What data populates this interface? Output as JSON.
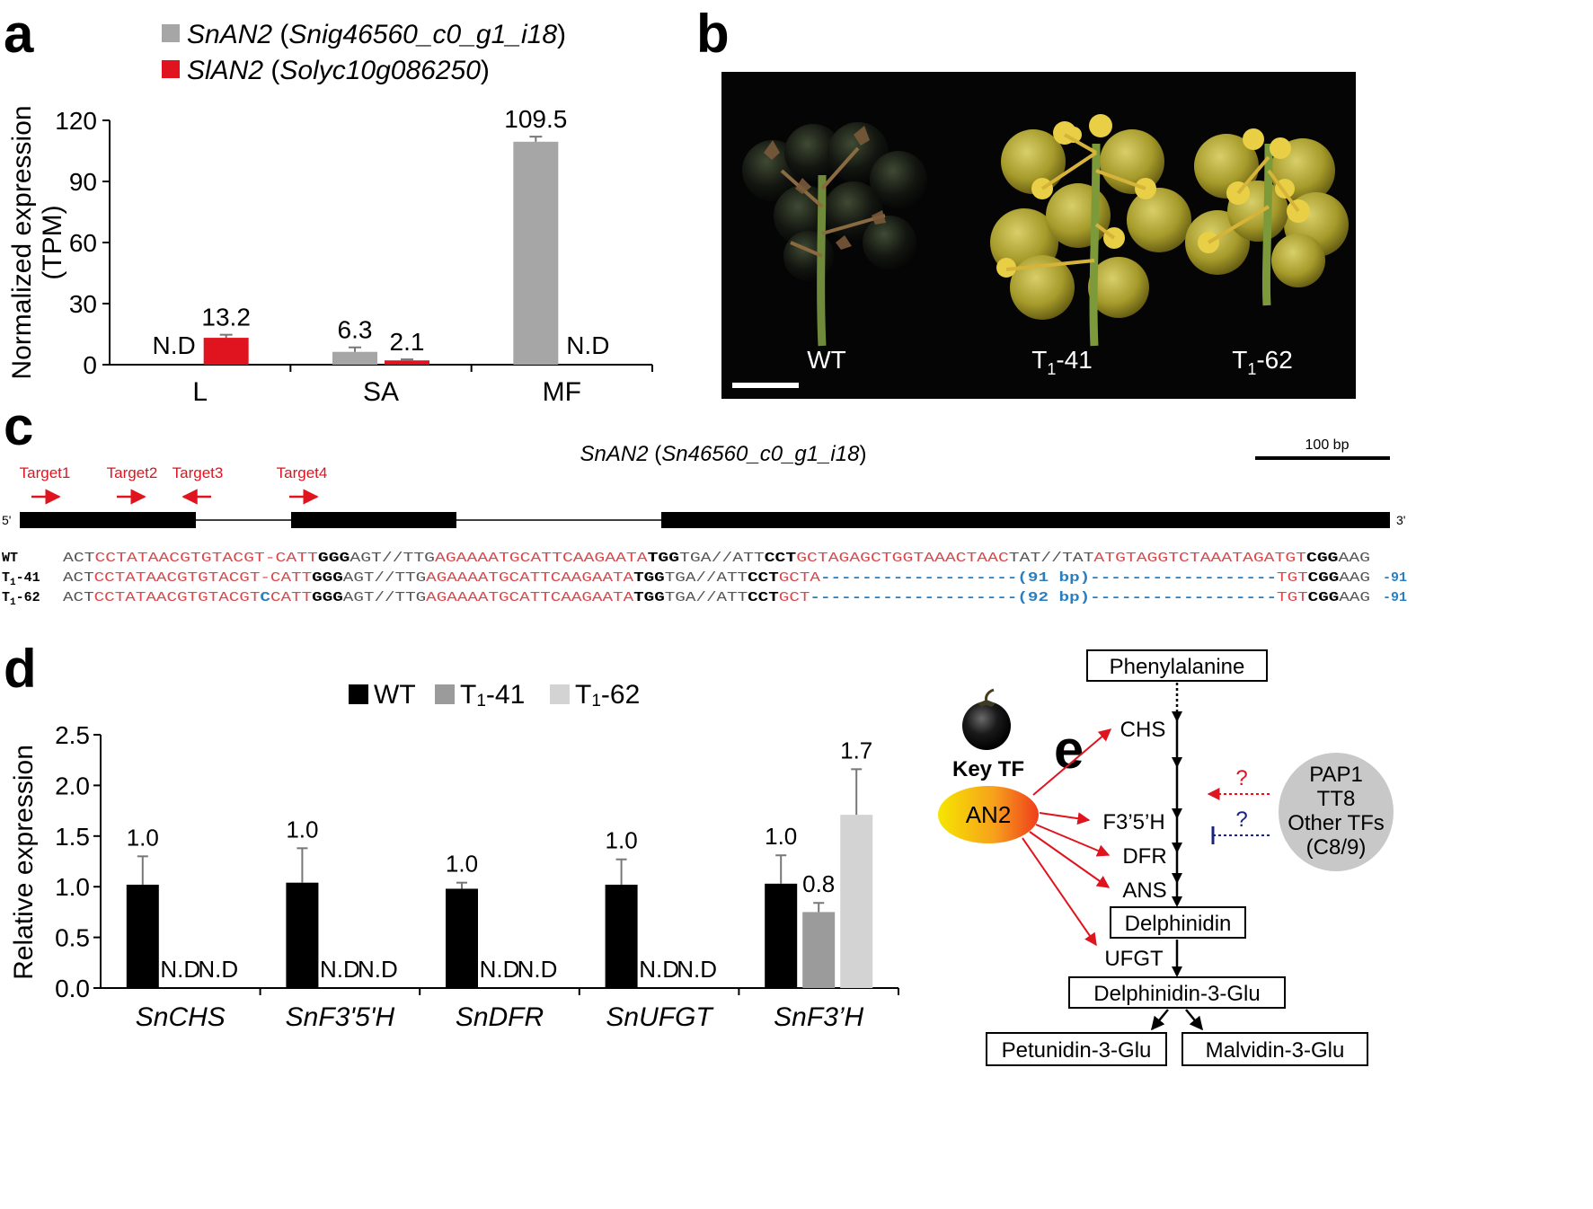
{
  "panels": {
    "a": "a",
    "b": "b",
    "c": "c",
    "d": "d",
    "e": "e"
  },
  "panel_a": {
    "legend": [
      {
        "gene": "SnAN2",
        "id": "Snig46560_c0_g1_i18",
        "color": "#a6a6a6"
      },
      {
        "gene": "SlAN2",
        "id": "Solyc10g086250",
        "color": "#e0141e"
      }
    ],
    "open_paren": " (",
    "close_paren": ")"
  },
  "panel_b": {
    "labels": [
      {
        "base": "WT",
        "sub": "",
        "rest": ""
      },
      {
        "base": "T",
        "sub": "1",
        "rest": "-41"
      },
      {
        "base": "T",
        "sub": "1",
        "rest": "-62"
      }
    ]
  },
  "panel_c": {
    "gene": "SnAN2",
    "id": "Sn46560_c0_g1_i18",
    "scale_label": "100 bp",
    "end5": "5'",
    "end3": "3'",
    "targets": [
      "Target1",
      "Target2",
      "Target3",
      "Target4"
    ],
    "rows": [
      {
        "label": "WT",
        "segments": [
          {
            "t": "ACT",
            "c": "g"
          },
          {
            "t": "CCTATAACGTGTACGT-CATT",
            "c": "r"
          },
          {
            "t": "GGG",
            "c": "b"
          },
          {
            "t": "AGT//TTG",
            "c": "g"
          },
          {
            "t": "AGAAAATGCATTCAAGAATA",
            "c": "r"
          },
          {
            "t": "TGG",
            "c": "b"
          },
          {
            "t": "TGA//ATT",
            "c": "g"
          },
          {
            "t": "CCT",
            "c": "b"
          },
          {
            "t": "GCTAGAGCTGGTAAACTAAC",
            "c": "r"
          },
          {
            "t": "TAT//TAT",
            "c": "g"
          },
          {
            "t": "ATGTAGGTCTAAATAGATGT",
            "c": "r"
          },
          {
            "t": "CGG",
            "c": "b"
          },
          {
            "t": "AAG",
            "c": "g"
          }
        ],
        "suffix": ""
      },
      {
        "label_base": "T",
        "label_sub": "1",
        "label_rest": "-41",
        "segments": [
          {
            "t": "ACT",
            "c": "g"
          },
          {
            "t": "CCTATAACGTGTACGT-CATT",
            "c": "r"
          },
          {
            "t": "GGG",
            "c": "b"
          },
          {
            "t": "AGT//TTG",
            "c": "g"
          },
          {
            "t": "AGAAAATGCATTCAAGAATA",
            "c": "r"
          },
          {
            "t": "TGG",
            "c": "b"
          },
          {
            "t": "TGA//ATT",
            "c": "g"
          },
          {
            "t": "CCT",
            "c": "b"
          },
          {
            "t": "GCTA",
            "c": "r"
          },
          {
            "t": "-------------------(91 bp)------------------",
            "c": "u"
          },
          {
            "t": "TGT",
            "c": "r"
          },
          {
            "t": "CGG",
            "c": "b"
          },
          {
            "t": "AAG",
            "c": "g"
          }
        ],
        "suffix": "-91"
      },
      {
        "label_base": "T",
        "label_sub": "1",
        "label_rest": "-62",
        "segments": [
          {
            "t": "ACT",
            "c": "g"
          },
          {
            "t": "CCTATAACGTGTACGT",
            "c": "r"
          },
          {
            "t": "C",
            "c": "u"
          },
          {
            "t": "CATT",
            "c": "r"
          },
          {
            "t": "GGG",
            "c": "b"
          },
          {
            "t": "AGT//TTG",
            "c": "g"
          },
          {
            "t": "AGAAAATGCATTCAAGAATA",
            "c": "r"
          },
          {
            "t": "TGG",
            "c": "b"
          },
          {
            "t": "TGA//ATT",
            "c": "g"
          },
          {
            "t": "CCT",
            "c": "b"
          },
          {
            "t": "GCT",
            "c": "r"
          },
          {
            "t": "--------------------(92 bp)------------------",
            "c": "u"
          },
          {
            "t": "TGT",
            "c": "r"
          },
          {
            "t": "CGG",
            "c": "b"
          },
          {
            "t": "AAG",
            "c": "g"
          }
        ],
        "suffix": "-91"
      }
    ]
  },
  "panel_e": {
    "key_tf": "Key TF",
    "an2": "AN2",
    "boxes": [
      "Phenylalanine",
      "Delphinidin",
      "Delphinidin-3-Glu",
      "Petunidin-3-Glu",
      "Malvidin-3-Glu"
    ],
    "enzymes": [
      "CHS",
      "F3’5’H",
      "DFR",
      "ANS",
      "UFGT"
    ],
    "others": [
      "PAP1",
      "TT8",
      "Other TFs",
      "(C8/9)"
    ],
    "question": "?"
  },
  "colors": {
    "bar_gray": "#a6a6a6",
    "bar_red": "#e0141e",
    "seq_red": "#d9484b",
    "seq_blue": "#2a7fc1",
    "seq_gray": "#555555"
  },
  "chart_data": [
    {
      "type": "bar",
      "panel": "a",
      "categories": [
        "L",
        "SA",
        "MF"
      ],
      "series": [
        {
          "name": "SnAN2 (Snig46560_c0_g1_i18)",
          "values": [
            null,
            6.3,
            109.5
          ],
          "errors": [
            null,
            2.2,
            2.5
          ],
          "labels": [
            "N.D",
            "6.3",
            "109.5"
          ]
        },
        {
          "name": "SlAN2 (Solyc10g086250)",
          "values": [
            13.2,
            2.1,
            null
          ],
          "errors": [
            1.5,
            0.5,
            null
          ],
          "labels": [
            "13.2",
            "2.1",
            "N.D"
          ]
        }
      ],
      "ylabel": [
        "Normalized expression",
        "(TPM)"
      ],
      "yticks": [
        "0",
        "30",
        "60",
        "90",
        "120"
      ],
      "ylim": [
        0,
        120
      ]
    },
    {
      "type": "bar",
      "panel": "d",
      "categories": [
        "SnCHS",
        "SnF3'5'H",
        "SnDFR",
        "SnUFGT",
        "SnF3’H"
      ],
      "series": [
        {
          "name": "WT",
          "color": "#000000",
          "values": [
            1.02,
            1.04,
            0.98,
            1.02,
            1.03
          ],
          "errors": [
            0.28,
            0.34,
            0.06,
            0.25,
            0.28
          ],
          "labels": [
            "1.0",
            "1.0",
            "1.0",
            "1.0",
            "1.0"
          ]
        },
        {
          "name_base": "T",
          "name_sub": "1",
          "name_rest": "-41",
          "color": "#9b9b9b",
          "values": [
            null,
            null,
            null,
            null,
            0.75
          ],
          "errors": [
            null,
            null,
            null,
            null,
            0.09
          ],
          "labels": [
            "N.D",
            "N.D",
            "N.D",
            "N.D",
            "0.8"
          ]
        },
        {
          "name_base": "T",
          "name_sub": "1",
          "name_rest": "-62",
          "color": "#d3d3d3",
          "values": [
            null,
            null,
            null,
            null,
            1.71
          ],
          "errors": [
            null,
            null,
            null,
            null,
            0.45
          ],
          "labels": [
            "N.D",
            "N.D",
            "N.D",
            "N.D",
            "1.7"
          ]
        }
      ],
      "ylabel": "Relative expression",
      "yticks": [
        "0.0",
        "0.5",
        "1.0",
        "1.5",
        "2.0",
        "2.5"
      ],
      "ylim": [
        0,
        2.5
      ]
    }
  ]
}
